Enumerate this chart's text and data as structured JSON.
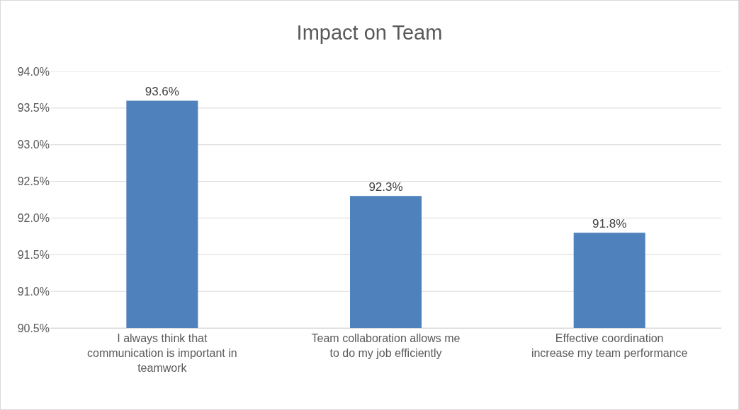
{
  "chart_data": {
    "type": "bar",
    "title": "Impact on Team",
    "categories": [
      "I always think that communication is important in teamwork",
      "Team collaboration allows me to do my job efficiently",
      "Effective coordination increase my team performance"
    ],
    "values": [
      93.6,
      92.3,
      91.8
    ],
    "value_labels": [
      "93.6%",
      "92.3%",
      "91.8%"
    ],
    "color": "#4f81bd",
    "ylim": [
      90.5,
      94.0
    ],
    "yticks": [
      {
        "value": 90.5,
        "label": "90.5%"
      },
      {
        "value": 91.0,
        "label": "91.0%"
      },
      {
        "value": 91.5,
        "label": "91.5%"
      },
      {
        "value": 92.0,
        "label": "92.0%"
      },
      {
        "value": 92.5,
        "label": "92.5%"
      },
      {
        "value": 93.0,
        "label": "93.0%"
      },
      {
        "value": 93.5,
        "label": "93.5%"
      },
      {
        "value": 94.0,
        "label": "94.0%"
      }
    ],
    "grid": "y"
  }
}
